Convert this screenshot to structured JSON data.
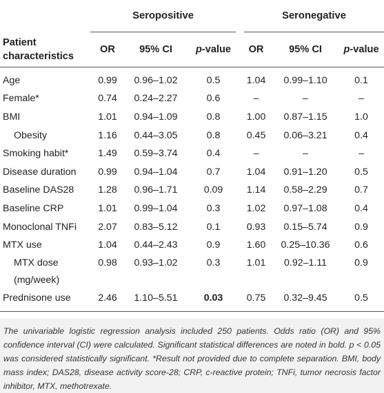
{
  "table": {
    "groups": {
      "seropositive": "Seropositive",
      "seronegative": "Seronegative"
    },
    "columns": {
      "patient": [
        "Patient",
        "characteristics"
      ],
      "or": "OR",
      "ci": "95% CI",
      "p_italic": "p",
      "p_rest": "-value"
    },
    "rows": [
      {
        "label": "Age",
        "sp_or": "0.99",
        "sp_ci": "0.96–1.02",
        "sp_p": "0.5",
        "sn_or": "1.04",
        "sn_ci": "0.99–1.10",
        "sn_p": "0.1"
      },
      {
        "label": "Female*",
        "sp_or": "0.74",
        "sp_ci": "0.24–2.27",
        "sp_p": "0.6",
        "sn_or": "–",
        "sn_ci": "–",
        "sn_p": "–"
      },
      {
        "label": "BMI",
        "sp_or": "1.01",
        "sp_ci": "0.94–1.09",
        "sp_p": "0.8",
        "sn_or": "1.00",
        "sn_ci": "0.87–1.15",
        "sn_p": "1.0"
      },
      {
        "label": "Obesity",
        "sp_or": "1.16",
        "sp_ci": "0.44–3.05",
        "sp_p": "0.8",
        "sn_or": "0.45",
        "sn_ci": "0.06–3.21",
        "sn_p": "0.4"
      },
      {
        "label": "Smoking habit*",
        "sp_or": "1.49",
        "sp_ci": "0.59–3.74",
        "sp_p": "0.4",
        "sn_or": "–",
        "sn_ci": "–",
        "sn_p": "–"
      },
      {
        "label": "Disease duration",
        "sp_or": "0.99",
        "sp_ci": "0.94–1.04",
        "sp_p": "0.7",
        "sn_or": "1.04",
        "sn_ci": "0.91–1.20",
        "sn_p": "0.5"
      },
      {
        "label": "Baseline DAS28",
        "sp_or": "1.28",
        "sp_ci": "0.96–1.71",
        "sp_p": "0.09",
        "sn_or": "1.14",
        "sn_ci": "0.58–2.29",
        "sn_p": "0.7"
      },
      {
        "label": "Baseline CRP",
        "sp_or": "1.01",
        "sp_ci": "0.99–1.04",
        "sp_p": "0.3",
        "sn_or": "1.02",
        "sn_ci": "0.97–1.08",
        "sn_p": "0.4"
      },
      {
        "label": "Monoclonal TNFi",
        "sp_or": "2.07",
        "sp_ci": "0.83–5.12",
        "sp_p": "0.1",
        "sn_or": "0.93",
        "sn_ci": "0.15–5.74",
        "sn_p": "0.9"
      },
      {
        "label": "MTX use",
        "sp_or": "1.04",
        "sp_ci": "0.44–2.43",
        "sp_p": "0.9",
        "sn_or": "1.60",
        "sn_ci": "0.25–10.36",
        "sn_p": "0.6"
      },
      {
        "label": "MTX dose",
        "label2": "(mg/week)",
        "sp_or": "0.98",
        "sp_ci": "0.93–1.02",
        "sp_p": "0.3",
        "sn_or": "1.01",
        "sn_ci": "0.92–1.11",
        "sn_p": "0.9"
      },
      {
        "label": "Prednisone use",
        "sp_or": "2.46",
        "sp_ci": "1.10–5.51",
        "sp_p": "0.03",
        "sn_or": "0.75",
        "sn_ci": "0.32–9.45",
        "sn_p": "0.5"
      }
    ]
  },
  "footnote": "The univariable logistic regression analysis included 250 patients. Odds ratio (OR) and 95% confidence interval (CI) were calculated. Significant statistical differences are noted in bold. p < 0.05 was considered statistically significant. *Result not provided due to complete separation. BMI, body mass index; DAS28, disease activity score-28; CRP, c-reactive protein; TNFi, tumor necrosis factor inhibitor, MTX, methotrexate."
}
